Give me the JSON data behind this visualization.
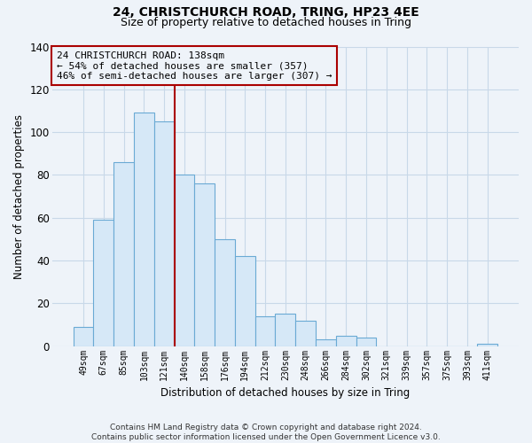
{
  "title1": "24, CHRISTCHURCH ROAD, TRING, HP23 4EE",
  "title2": "Size of property relative to detached houses in Tring",
  "xlabel": "Distribution of detached houses by size in Tring",
  "ylabel": "Number of detached properties",
  "bar_color": "#d6e8f7",
  "bar_edge_color": "#6aaad4",
  "vline_color": "#aa0000",
  "categories": [
    "49sqm",
    "67sqm",
    "85sqm",
    "103sqm",
    "121sqm",
    "140sqm",
    "158sqm",
    "176sqm",
    "194sqm",
    "212sqm",
    "230sqm",
    "248sqm",
    "266sqm",
    "284sqm",
    "302sqm",
    "321sqm",
    "339sqm",
    "357sqm",
    "375sqm",
    "393sqm",
    "411sqm"
  ],
  "values": [
    9,
    59,
    86,
    109,
    105,
    80,
    76,
    50,
    42,
    14,
    15,
    12,
    3,
    5,
    4,
    0,
    0,
    0,
    0,
    0,
    1
  ],
  "ylim": [
    0,
    140
  ],
  "yticks": [
    0,
    20,
    40,
    60,
    80,
    100,
    120,
    140
  ],
  "annotation_title": "24 CHRISTCHURCH ROAD: 138sqm",
  "annotation_line1": "← 54% of detached houses are smaller (357)",
  "annotation_line2": "46% of semi-detached houses are larger (307) →",
  "footnote": "Contains HM Land Registry data © Crown copyright and database right 2024.\nContains public sector information licensed under the Open Government Licence v3.0.",
  "background_color": "#eef3f9",
  "grid_color": "#c8d8e8",
  "vline_category": "140sqm"
}
